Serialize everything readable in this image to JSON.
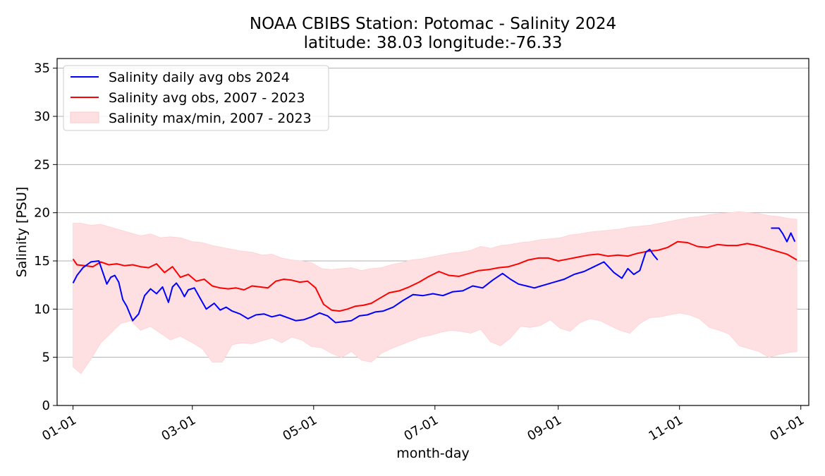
{
  "chart_data": {
    "type": "line",
    "title": "NOAA CBIBS Station: Potomac - Salinity 2024",
    "subtitle": "latitude: 38.03 longitude:-76.33",
    "xlabel": "month-day",
    "ylabel": "Salinity [PSU]",
    "xlim": [
      "2023-12-24",
      "2025-01-05"
    ],
    "ylim": [
      0,
      36
    ],
    "x_tick_labels": [
      "01-01",
      "03-01",
      "05-01",
      "07-01",
      "09-01",
      "11-01",
      "01-01"
    ],
    "x_tick_dates": [
      "2024-01-01",
      "2024-03-01",
      "2024-05-01",
      "2024-07-01",
      "2024-09-01",
      "2024-11-01",
      "2025-01-01"
    ],
    "y_ticks": [
      0,
      5,
      10,
      15,
      20,
      25,
      30,
      35
    ],
    "grid": "horizontal",
    "legend_position": "top-left",
    "colors": {
      "obs_2024": "#0000ff",
      "avg_obs": "#ff0000",
      "band_fill": "#ffe0e2",
      "grid": "#b0b0b0"
    },
    "series": [
      {
        "name": "Salinity daily avg obs 2024",
        "kind": "line",
        "x": [
          "2024-01-01",
          "2024-01-03",
          "2024-01-06",
          "2024-01-10",
          "2024-01-14",
          "2024-01-18",
          "2024-01-20",
          "2024-01-22",
          "2024-01-24",
          "2024-01-26",
          "2024-01-28",
          "2024-01-31",
          "2024-02-03",
          "2024-02-06",
          "2024-02-09",
          "2024-02-12",
          "2024-02-15",
          "2024-02-18",
          "2024-02-20",
          "2024-02-22",
          "2024-02-24",
          "2024-02-26",
          "2024-02-28",
          "2024-03-02",
          "2024-03-05",
          "2024-03-08",
          "2024-03-12",
          "2024-03-15",
          "2024-03-18",
          "2024-03-21",
          "2024-03-25",
          "2024-03-29",
          "2024-04-02",
          "2024-04-06",
          "2024-04-10",
          "2024-04-14",
          "2024-04-18",
          "2024-04-22",
          "2024-04-26",
          "2024-04-30",
          "2024-05-04",
          "2024-05-08",
          "2024-05-12",
          "2024-05-16",
          "2024-05-20",
          "2024-05-24",
          "2024-05-28",
          "2024-06-01",
          "2024-06-05",
          "2024-06-10",
          "2024-06-15",
          "2024-06-20",
          "2024-06-25",
          "2024-06-30",
          "2024-07-05",
          "2024-07-10",
          "2024-07-15",
          "2024-07-20",
          "2024-07-25",
          "2024-07-30",
          "2024-08-04",
          "2024-08-08",
          "2024-08-12",
          "2024-08-16",
          "2024-08-20",
          "2024-08-25",
          "2024-08-30",
          "2024-09-04",
          "2024-09-09",
          "2024-09-14",
          "2024-09-19",
          "2024-09-24",
          "2024-09-29",
          "2024-10-03",
          "2024-10-06",
          "2024-10-09",
          "2024-10-12",
          "2024-10-15",
          "2024-10-17",
          "2024-10-19",
          "2024-10-21"
        ],
        "values": [
          12.7,
          13.5,
          14.3,
          14.9,
          15.0,
          12.6,
          13.3,
          13.5,
          12.8,
          11.0,
          10.3,
          8.8,
          9.5,
          11.4,
          12.1,
          11.6,
          12.3,
          10.7,
          12.3,
          12.7,
          12.1,
          11.3,
          12.0,
          12.2,
          11.1,
          10.0,
          10.6,
          9.9,
          10.2,
          9.8,
          9.5,
          9.0,
          9.4,
          9.5,
          9.2,
          9.4,
          9.1,
          8.8,
          8.9,
          9.2,
          9.6,
          9.3,
          8.6,
          8.7,
          8.8,
          9.3,
          9.4,
          9.7,
          9.8,
          10.2,
          10.9,
          11.5,
          11.4,
          11.6,
          11.4,
          11.8,
          11.9,
          12.4,
          12.2,
          13.0,
          13.7,
          13.1,
          12.6,
          12.4,
          12.2,
          12.5,
          12.8,
          13.1,
          13.6,
          13.9,
          14.4,
          14.9,
          13.8,
          13.2,
          14.2,
          13.6,
          14.0,
          15.9,
          16.2,
          15.6,
          15.1
        ]
      },
      {
        "name": "Salinity daily avg obs 2024 (December)",
        "kind": "line",
        "x": [
          "2024-12-17",
          "2024-12-21",
          "2024-12-23",
          "2024-12-25",
          "2024-12-27",
          "2024-12-29"
        ],
        "values": [
          18.4,
          18.4,
          17.8,
          17.0,
          17.9,
          17.0
        ]
      },
      {
        "name": "Salinity avg obs, 2007 - 2023",
        "kind": "line",
        "x": [
          "2024-01-01",
          "2024-01-03",
          "2024-01-07",
          "2024-01-11",
          "2024-01-15",
          "2024-01-19",
          "2024-01-23",
          "2024-01-27",
          "2024-01-31",
          "2024-02-04",
          "2024-02-08",
          "2024-02-12",
          "2024-02-16",
          "2024-02-20",
          "2024-02-24",
          "2024-02-28",
          "2024-03-03",
          "2024-03-07",
          "2024-03-11",
          "2024-03-15",
          "2024-03-19",
          "2024-03-23",
          "2024-03-27",
          "2024-03-31",
          "2024-04-04",
          "2024-04-08",
          "2024-04-12",
          "2024-04-16",
          "2024-04-20",
          "2024-04-24",
          "2024-04-28",
          "2024-05-02",
          "2024-05-06",
          "2024-05-10",
          "2024-05-14",
          "2024-05-18",
          "2024-05-22",
          "2024-05-26",
          "2024-05-30",
          "2024-06-03",
          "2024-06-08",
          "2024-06-13",
          "2024-06-18",
          "2024-06-23",
          "2024-06-28",
          "2024-07-03",
          "2024-07-08",
          "2024-07-13",
          "2024-07-18",
          "2024-07-23",
          "2024-07-28",
          "2024-08-02",
          "2024-08-07",
          "2024-08-12",
          "2024-08-17",
          "2024-08-22",
          "2024-08-27",
          "2024-09-01",
          "2024-09-06",
          "2024-09-11",
          "2024-09-16",
          "2024-09-21",
          "2024-09-26",
          "2024-10-01",
          "2024-10-06",
          "2024-10-11",
          "2024-10-16",
          "2024-10-21",
          "2024-10-26",
          "2024-10-31",
          "2024-11-05",
          "2024-11-10",
          "2024-11-15",
          "2024-11-20",
          "2024-11-25",
          "2024-11-30",
          "2024-12-05",
          "2024-12-10",
          "2024-12-15",
          "2024-12-20",
          "2024-12-25",
          "2024-12-30"
        ],
        "values": [
          15.2,
          14.6,
          14.5,
          14.4,
          14.9,
          14.6,
          14.7,
          14.5,
          14.6,
          14.4,
          14.3,
          14.7,
          13.8,
          14.4,
          13.3,
          13.6,
          12.9,
          13.1,
          12.4,
          12.2,
          12.1,
          12.2,
          12.0,
          12.4,
          12.3,
          12.2,
          12.9,
          13.1,
          13.0,
          12.8,
          12.9,
          12.2,
          10.5,
          9.9,
          9.8,
          10.0,
          10.3,
          10.4,
          10.6,
          11.1,
          11.7,
          11.9,
          12.3,
          12.8,
          13.4,
          13.9,
          13.5,
          13.4,
          13.7,
          14.0,
          14.1,
          14.3,
          14.4,
          14.7,
          15.1,
          15.3,
          15.3,
          15.0,
          15.2,
          15.4,
          15.6,
          15.7,
          15.5,
          15.6,
          15.5,
          15.8,
          16.0,
          16.1,
          16.4,
          17.0,
          16.9,
          16.5,
          16.4,
          16.7,
          16.6,
          16.6,
          16.8,
          16.6,
          16.3,
          16.0,
          15.7,
          15.1
        ]
      },
      {
        "name": "Salinity max/min, 2007 - 2023",
        "kind": "band",
        "x": [
          "2024-01-01",
          "2024-01-05",
          "2024-01-10",
          "2024-01-15",
          "2024-01-20",
          "2024-01-25",
          "2024-01-30",
          "2024-02-04",
          "2024-02-09",
          "2024-02-14",
          "2024-02-19",
          "2024-02-24",
          "2024-03-01",
          "2024-03-06",
          "2024-03-11",
          "2024-03-16",
          "2024-03-21",
          "2024-03-26",
          "2024-03-31",
          "2024-04-05",
          "2024-04-10",
          "2024-04-15",
          "2024-04-20",
          "2024-04-25",
          "2024-04-30",
          "2024-05-05",
          "2024-05-10",
          "2024-05-15",
          "2024-05-20",
          "2024-05-25",
          "2024-05-30",
          "2024-06-04",
          "2024-06-09",
          "2024-06-14",
          "2024-06-19",
          "2024-06-24",
          "2024-06-29",
          "2024-07-04",
          "2024-07-09",
          "2024-07-14",
          "2024-07-19",
          "2024-07-24",
          "2024-07-29",
          "2024-08-03",
          "2024-08-08",
          "2024-08-13",
          "2024-08-18",
          "2024-08-23",
          "2024-08-28",
          "2024-09-02",
          "2024-09-07",
          "2024-09-12",
          "2024-09-17",
          "2024-09-22",
          "2024-09-27",
          "2024-10-02",
          "2024-10-07",
          "2024-10-12",
          "2024-10-17",
          "2024-10-22",
          "2024-10-27",
          "2024-11-01",
          "2024-11-06",
          "2024-11-11",
          "2024-11-16",
          "2024-11-21",
          "2024-11-26",
          "2024-12-01",
          "2024-12-06",
          "2024-12-11",
          "2024-12-16",
          "2024-12-21",
          "2024-12-26",
          "2024-12-30"
        ],
        "upper": [
          18.9,
          18.9,
          18.7,
          18.8,
          18.5,
          18.2,
          17.9,
          17.6,
          17.8,
          17.4,
          17.5,
          17.4,
          17.0,
          16.9,
          16.6,
          16.4,
          16.2,
          16.0,
          15.9,
          15.6,
          15.7,
          15.3,
          15.1,
          15.0,
          14.8,
          14.2,
          14.1,
          14.2,
          14.3,
          14.0,
          14.2,
          14.3,
          14.6,
          14.8,
          15.1,
          15.2,
          15.4,
          15.6,
          15.8,
          15.9,
          16.1,
          16.5,
          16.3,
          16.6,
          16.7,
          16.9,
          17.0,
          17.2,
          17.3,
          17.4,
          17.7,
          17.8,
          18.0,
          18.1,
          18.2,
          18.3,
          18.5,
          18.6,
          18.7,
          18.9,
          19.1,
          19.3,
          19.5,
          19.6,
          19.8,
          19.9,
          20.0,
          20.1,
          20.0,
          19.9,
          19.7,
          19.6,
          19.4,
          19.3
        ],
        "lower": [
          4.0,
          3.3,
          4.8,
          6.5,
          7.5,
          8.5,
          8.8,
          7.8,
          8.2,
          7.5,
          6.8,
          7.2,
          6.5,
          5.9,
          4.5,
          4.5,
          6.3,
          6.5,
          6.4,
          6.7,
          7.0,
          6.5,
          7.1,
          6.8,
          6.1,
          6.0,
          5.4,
          5.0,
          5.6,
          4.7,
          4.5,
          5.4,
          5.9,
          6.3,
          6.7,
          7.1,
          7.3,
          7.6,
          7.8,
          7.7,
          7.5,
          7.9,
          6.6,
          6.2,
          7.0,
          8.2,
          8.1,
          8.3,
          8.9,
          8.0,
          7.7,
          8.6,
          9.0,
          8.8,
          8.3,
          7.8,
          7.5,
          8.5,
          9.1,
          9.2,
          9.4,
          9.6,
          9.4,
          9.0,
          8.1,
          7.8,
          7.4,
          6.2,
          5.9,
          5.6,
          5.0,
          5.3,
          5.5,
          5.6
        ]
      }
    ]
  }
}
